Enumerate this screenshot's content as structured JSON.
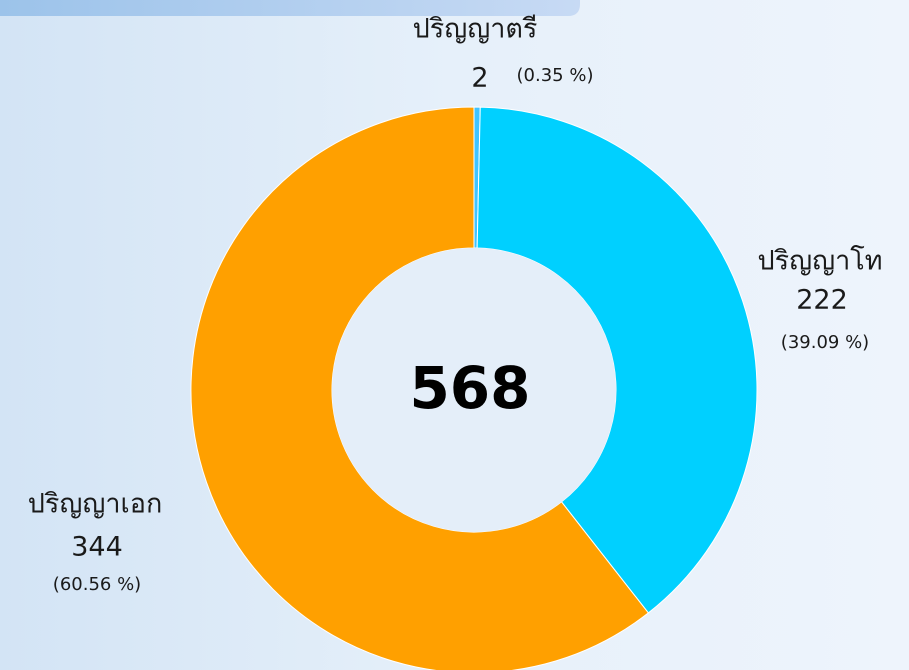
{
  "chart_data": {
    "type": "donut",
    "categories": [
      "ปริญญาตรี",
      "ปริญญาโท",
      "ปริญญาเอก"
    ],
    "values": [
      2,
      222,
      344
    ],
    "percent_labels": [
      "(0.35 %)",
      "(39.09 %)",
      "(60.56 %)"
    ],
    "colors": [
      "#40c4ff",
      "#00d0ff",
      "#ffa000"
    ],
    "total": 568
  }
}
